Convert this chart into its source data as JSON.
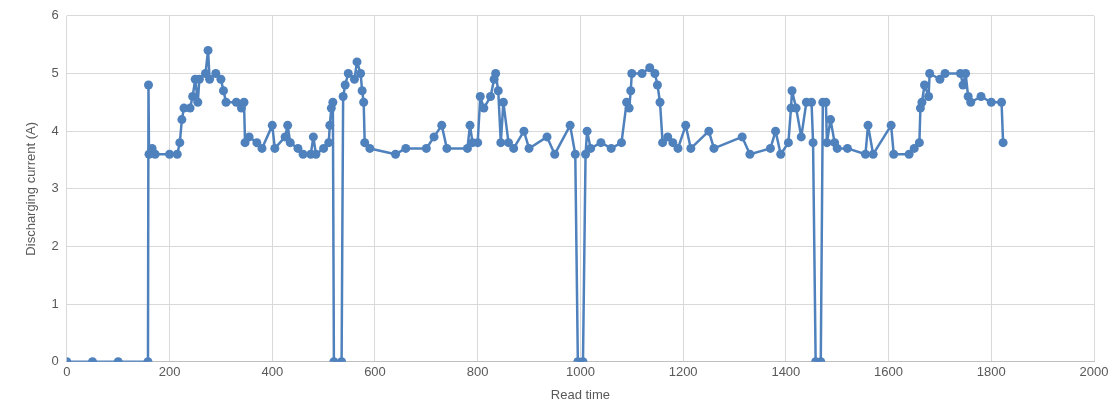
{
  "chart_data": {
    "type": "line",
    "xlabel": "Read time",
    "ylabel": "Discharging current (A)",
    "xlim": [
      0,
      2000
    ],
    "xticks": [
      0,
      200,
      400,
      600,
      800,
      1000,
      1200,
      1400,
      1600,
      1800,
      2000
    ],
    "ylim": [
      0,
      6
    ],
    "yticks": [
      0,
      1,
      2,
      3,
      4,
      5,
      6
    ],
    "grid": true,
    "legend": false,
    "marker": "circle",
    "line_style": "solid",
    "series": [
      {
        "color": "#4f81bd",
        "x": [
          0,
          50,
          100,
          158,
          159,
          160,
          166,
          172,
          200,
          215,
          220,
          224,
          228,
          240,
          245,
          250,
          255,
          258,
          270,
          275,
          278,
          290,
          300,
          305,
          310,
          330,
          340,
          345,
          347,
          355,
          370,
          380,
          400,
          405,
          425,
          430,
          435,
          450,
          460,
          475,
          480,
          485,
          500,
          510,
          512,
          515,
          518,
          520,
          535,
          538,
          542,
          548,
          560,
          565,
          572,
          575,
          578,
          580,
          590,
          640,
          660,
          700,
          715,
          730,
          740,
          780,
          785,
          790,
          800,
          805,
          812,
          825,
          832,
          835,
          840,
          845,
          850,
          860,
          870,
          890,
          900,
          935,
          950,
          980,
          990,
          995,
          1005,
          1010,
          1013,
          1020,
          1040,
          1060,
          1080,
          1090,
          1095,
          1098,
          1100,
          1120,
          1135,
          1145,
          1150,
          1155,
          1160,
          1170,
          1180,
          1190,
          1205,
          1215,
          1250,
          1260,
          1315,
          1330,
          1370,
          1380,
          1390,
          1405,
          1410,
          1412,
          1420,
          1430,
          1440,
          1450,
          1453,
          1458,
          1468,
          1472,
          1478,
          1480,
          1487,
          1495,
          1500,
          1520,
          1555,
          1560,
          1570,
          1605,
          1610,
          1640,
          1650,
          1660,
          1662,
          1665,
          1670,
          1678,
          1680,
          1700,
          1710,
          1740,
          1745,
          1750,
          1755,
          1760,
          1780,
          1800,
          1820,
          1823
        ],
        "values": [
          0,
          0,
          0,
          0,
          4.8,
          3.6,
          3.7,
          3.6,
          3.6,
          3.6,
          3.8,
          4.2,
          4.4,
          4.4,
          4.6,
          4.9,
          4.5,
          4.9,
          5.0,
          5.4,
          4.9,
          5.0,
          4.9,
          4.7,
          4.5,
          4.5,
          4.4,
          4.5,
          3.8,
          3.9,
          3.8,
          3.7,
          4.1,
          3.7,
          3.9,
          4.1,
          3.8,
          3.7,
          3.6,
          3.6,
          3.9,
          3.6,
          3.7,
          3.8,
          4.1,
          4.4,
          4.5,
          0,
          0,
          4.6,
          4.8,
          5.0,
          4.9,
          5.2,
          5.0,
          4.7,
          4.5,
          3.8,
          3.7,
          3.6,
          3.7,
          3.7,
          3.9,
          4.1,
          3.7,
          3.7,
          4.1,
          3.8,
          3.8,
          4.6,
          4.4,
          4.6,
          4.9,
          5.0,
          4.7,
          3.8,
          4.5,
          3.8,
          3.7,
          4.0,
          3.7,
          3.9,
          3.6,
          4.1,
          3.6,
          0,
          0,
          3.6,
          4.0,
          3.7,
          3.8,
          3.7,
          3.8,
          4.5,
          4.4,
          4.7,
          5.0,
          5.0,
          5.1,
          5.0,
          4.8,
          4.5,
          3.8,
          3.9,
          3.8,
          3.7,
          4.1,
          3.7,
          4.0,
          3.7,
          3.9,
          3.6,
          3.7,
          4.0,
          3.6,
          3.8,
          4.4,
          4.7,
          4.4,
          3.9,
          4.5,
          4.5,
          3.8,
          0,
          0,
          4.5,
          4.5,
          3.8,
          4.2,
          3.8,
          3.7,
          3.7,
          3.6,
          4.1,
          3.6,
          4.1,
          3.6,
          3.6,
          3.7,
          3.8,
          4.4,
          4.5,
          4.8,
          4.6,
          5.0,
          4.9,
          5.0,
          5.0,
          4.8,
          5.0,
          4.6,
          4.5,
          4.6,
          4.5,
          4.5,
          3.8
        ]
      }
    ]
  }
}
